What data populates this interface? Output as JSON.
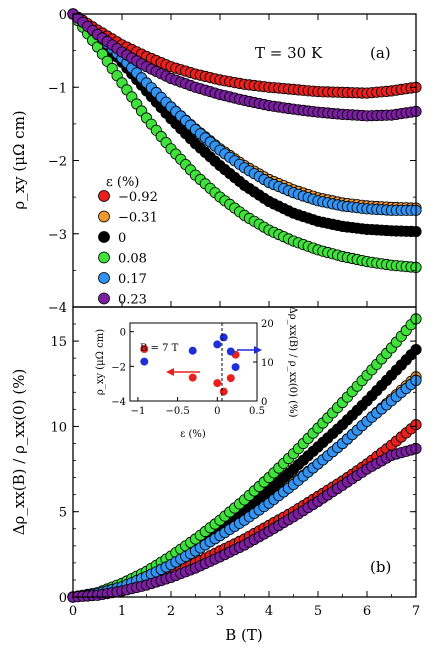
{
  "chart_data": [
    {
      "panel": "a",
      "type": "scatter",
      "panel_label": "(a)",
      "annotation": "T = 30 K",
      "xlabel": "",
      "ylabel": "ρ_xy (μΩ cm)",
      "xlim": [
        0,
        7
      ],
      "ylim": [
        -4,
        0
      ],
      "y_ticks": [
        "−4",
        "−3",
        "−2",
        "−1",
        "0"
      ],
      "legend_title": "ε (%)",
      "legend_position": "left",
      "x": [
        0,
        0.5,
        1,
        1.5,
        2,
        2.5,
        3,
        3.5,
        4,
        4.5,
        5,
        5.5,
        6,
        6.5,
        7
      ],
      "series": [
        {
          "name": "−0.92",
          "color": "#e8211f",
          "values": [
            0,
            -0.22,
            -0.42,
            -0.58,
            -0.72,
            -0.82,
            -0.9,
            -0.96,
            -1.0,
            -1.03,
            -1.06,
            -1.07,
            -1.08,
            -1.05,
            -1.0
          ]
        },
        {
          "name": "−0.31",
          "color": "#f39a2e",
          "values": [
            0,
            -0.3,
            -0.62,
            -0.95,
            -1.27,
            -1.57,
            -1.84,
            -2.07,
            -2.26,
            -2.4,
            -2.51,
            -2.58,
            -2.62,
            -2.64,
            -2.65
          ]
        },
        {
          "name": "0",
          "color": "#000000",
          "values": [
            0,
            -0.3,
            -0.66,
            -1.05,
            -1.43,
            -1.77,
            -2.07,
            -2.34,
            -2.56,
            -2.72,
            -2.83,
            -2.9,
            -2.94,
            -2.96,
            -2.97
          ]
        },
        {
          "name": "0.08",
          "color": "#3ee23a",
          "values": [
            0,
            -0.45,
            -0.94,
            -1.42,
            -1.84,
            -2.2,
            -2.5,
            -2.75,
            -2.95,
            -3.1,
            -3.22,
            -3.31,
            -3.38,
            -3.43,
            -3.46
          ]
        },
        {
          "name": "0.17",
          "color": "#3393f2",
          "values": [
            0,
            -0.28,
            -0.6,
            -0.94,
            -1.27,
            -1.58,
            -1.86,
            -2.1,
            -2.3,
            -2.44,
            -2.55,
            -2.62,
            -2.66,
            -2.68,
            -2.68
          ]
        },
        {
          "name": "0.23",
          "color": "#7b1fa0",
          "values": [
            0,
            -0.28,
            -0.52,
            -0.72,
            -0.88,
            -1.0,
            -1.1,
            -1.18,
            -1.25,
            -1.3,
            -1.34,
            -1.37,
            -1.39,
            -1.38,
            -1.33
          ]
        }
      ]
    },
    {
      "panel": "b",
      "type": "scatter",
      "panel_label": "(b)",
      "xlabel": "B (T)",
      "ylabel": "Δρ_xx(B) / ρ_xx(0) (%)",
      "xlim": [
        0,
        7
      ],
      "ylim": [
        0,
        17
      ],
      "x_ticks": [
        "0",
        "1",
        "2",
        "3",
        "4",
        "5",
        "6",
        "7"
      ],
      "y_ticks": [
        "0",
        "5",
        "10",
        "15"
      ],
      "x": [
        0,
        0.5,
        1,
        1.5,
        2,
        2.5,
        3,
        3.5,
        4,
        4.5,
        5,
        5.5,
        6,
        6.5,
        7
      ],
      "series": [
        {
          "name": "−0.92",
          "color": "#e8211f",
          "values": [
            0,
            0.15,
            0.45,
            0.9,
            1.4,
            2.0,
            2.7,
            3.4,
            4.2,
            5.0,
            5.9,
            6.8,
            7.8,
            8.9,
            10.1
          ]
        },
        {
          "name": "−0.31",
          "color": "#f39a2e",
          "values": [
            0,
            0.2,
            0.6,
            1.2,
            1.9,
            2.7,
            3.6,
            4.6,
            5.6,
            6.7,
            7.8,
            9.0,
            10.3,
            11.6,
            12.9
          ]
        },
        {
          "name": "0",
          "color": "#000000",
          "values": [
            0,
            0.2,
            0.7,
            1.3,
            2.1,
            3.0,
            4.0,
            5.1,
            6.2,
            7.5,
            8.8,
            10.1,
            11.5,
            13.0,
            14.5
          ]
        },
        {
          "name": "0.08",
          "color": "#3ee23a",
          "values": [
            0,
            0.25,
            0.8,
            1.5,
            2.4,
            3.4,
            4.5,
            5.7,
            7.0,
            8.4,
            9.9,
            11.4,
            13.0,
            14.6,
            16.3
          ]
        },
        {
          "name": "0.17",
          "color": "#3393f2",
          "values": [
            0,
            0.2,
            0.6,
            1.2,
            1.9,
            2.7,
            3.6,
            4.5,
            5.5,
            6.6,
            7.8,
            9.0,
            10.3,
            11.5,
            12.7
          ]
        },
        {
          "name": "0.23",
          "color": "#7b1fa0",
          "values": [
            0,
            0.1,
            0.35,
            0.7,
            1.15,
            1.7,
            2.35,
            3.05,
            3.85,
            4.7,
            5.6,
            6.55,
            7.5,
            8.3,
            8.7
          ]
        }
      ]
    },
    {
      "panel": "b-inset",
      "type": "scatter",
      "annotation": "B = 7 T",
      "xlabel": "ε (%)",
      "ylabel_left": "ρ_xy (μΩ cm)",
      "ylabel_right": "Δρ_xx(B) / ρ_xx(0) (%)",
      "xlim": [
        -1.1,
        0.5
      ],
      "ylim_left": [
        -4,
        0.5
      ],
      "ylim_right": [
        0,
        20
      ],
      "x_ticks": [
        "−1",
        "−0.5",
        "0",
        "0.5"
      ],
      "y_ticks_left": [
        "−4",
        "−2",
        "0"
      ],
      "y_ticks_right": [
        "0",
        "10",
        "20"
      ],
      "series": [
        {
          "name": "ρ_xy",
          "color": "#e8211f",
          "axis": "left",
          "x": [
            -0.92,
            -0.31,
            0,
            0.08,
            0.17,
            0.23
          ],
          "values": [
            -1.0,
            -2.65,
            -2.97,
            -3.46,
            -2.68,
            -1.33
          ]
        },
        {
          "name": "Δρ_xx/ρ_xx(0)",
          "color": "#1f2fd8",
          "axis": "right",
          "x": [
            -0.92,
            -0.31,
            0,
            0.08,
            0.17,
            0.23
          ],
          "values": [
            10.1,
            12.9,
            14.5,
            16.3,
            12.7,
            8.7
          ]
        }
      ]
    }
  ]
}
